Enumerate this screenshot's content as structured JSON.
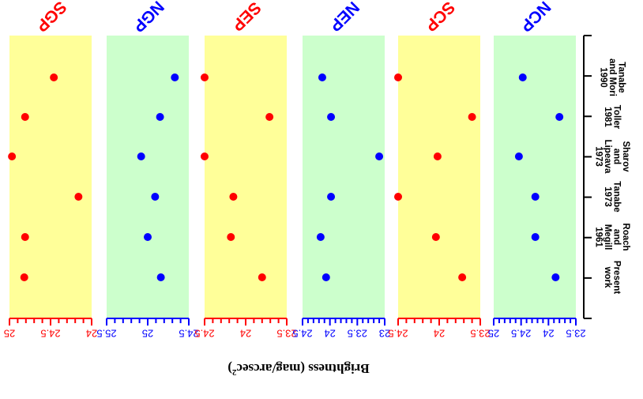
{
  "chart_data": {
    "type": "scatter",
    "xlabel": "Brightness (mag/arcsec",
    "xlabel_superscript": "2",
    "xlabel_close": ")",
    "x_reversed": true,
    "categories": [
      {
        "lines": [
          "Present",
          "work"
        ]
      },
      {
        "lines": [
          "Roach",
          "and",
          "Megill",
          "1961"
        ]
      },
      {
        "lines": [
          "Tanabe",
          "1973"
        ]
      },
      {
        "lines": [
          "Sharov",
          "and",
          "Lipeava",
          "1973"
        ]
      },
      {
        "lines": [
          "Toller",
          "1981"
        ]
      },
      {
        "lines": [
          "Tanabe",
          "and Mori",
          "1990"
        ]
      }
    ],
    "panels": [
      {
        "name": "SGP",
        "color": "#ff0000",
        "background": "#ffff99",
        "xlim": [
          25,
          24
        ],
        "major_ticks": [
          25,
          24.5,
          24
        ],
        "tick_labels": [
          "25",
          "24.5",
          "24"
        ],
        "minor_step": 0.1,
        "values": [
          24.82,
          24.81,
          24.16,
          24.97,
          24.81,
          24.46
        ]
      },
      {
        "name": "NGP",
        "color": "#0000ff",
        "background": "#ccffcc",
        "xlim": [
          25.5,
          24.5
        ],
        "major_ticks": [
          25.5,
          25,
          24.5
        ],
        "tick_labels": [
          "25.5",
          "25",
          "24.5"
        ],
        "minor_step": 0.1,
        "values": [
          24.84,
          25.0,
          24.91,
          25.08,
          24.85,
          24.67
        ]
      },
      {
        "name": "SEP",
        "color": "#ff0000",
        "background": "#ffff99",
        "xlim": [
          24.5,
          23.5
        ],
        "major_ticks": [
          24.5,
          24,
          23.5
        ],
        "tick_labels": [
          "24.5",
          "24",
          "23.5"
        ],
        "minor_step": 0.1,
        "values": [
          23.8,
          24.18,
          24.15,
          24.5,
          23.71,
          24.5
        ]
      },
      {
        "name": "NEP",
        "color": "#0000ff",
        "background": "#ccffcc",
        "xlim": [
          24.5,
          23
        ],
        "major_ticks": [
          24.5,
          24,
          23.5,
          23
        ],
        "tick_labels": [
          "24.5",
          "24",
          "23.5",
          "23"
        ],
        "minor_step": 0.1,
        "values": [
          24.07,
          24.17,
          23.98,
          23.1,
          23.98,
          24.14
        ]
      },
      {
        "name": "SCP",
        "color": "#ff0000",
        "background": "#ffff99",
        "xlim": [
          24.5,
          23.5
        ],
        "major_ticks": [
          24.5,
          24,
          23.5
        ],
        "tick_labels": [
          "24.5",
          "24",
          "23.5"
        ],
        "minor_step": 0.1,
        "values": [
          23.72,
          24.04,
          24.5,
          24.02,
          23.6,
          24.5
        ]
      },
      {
        "name": "NCP",
        "color": "#0000ff",
        "background": "#ccffcc",
        "xlim": [
          25,
          23.5
        ],
        "major_ticks": [
          25,
          24.5,
          24,
          23.5
        ],
        "tick_labels": [
          "25",
          "24.5",
          "24",
          "23.5"
        ],
        "minor_step": 0.1,
        "values": [
          23.87,
          24.24,
          24.24,
          24.54,
          23.8,
          24.47
        ]
      }
    ]
  }
}
